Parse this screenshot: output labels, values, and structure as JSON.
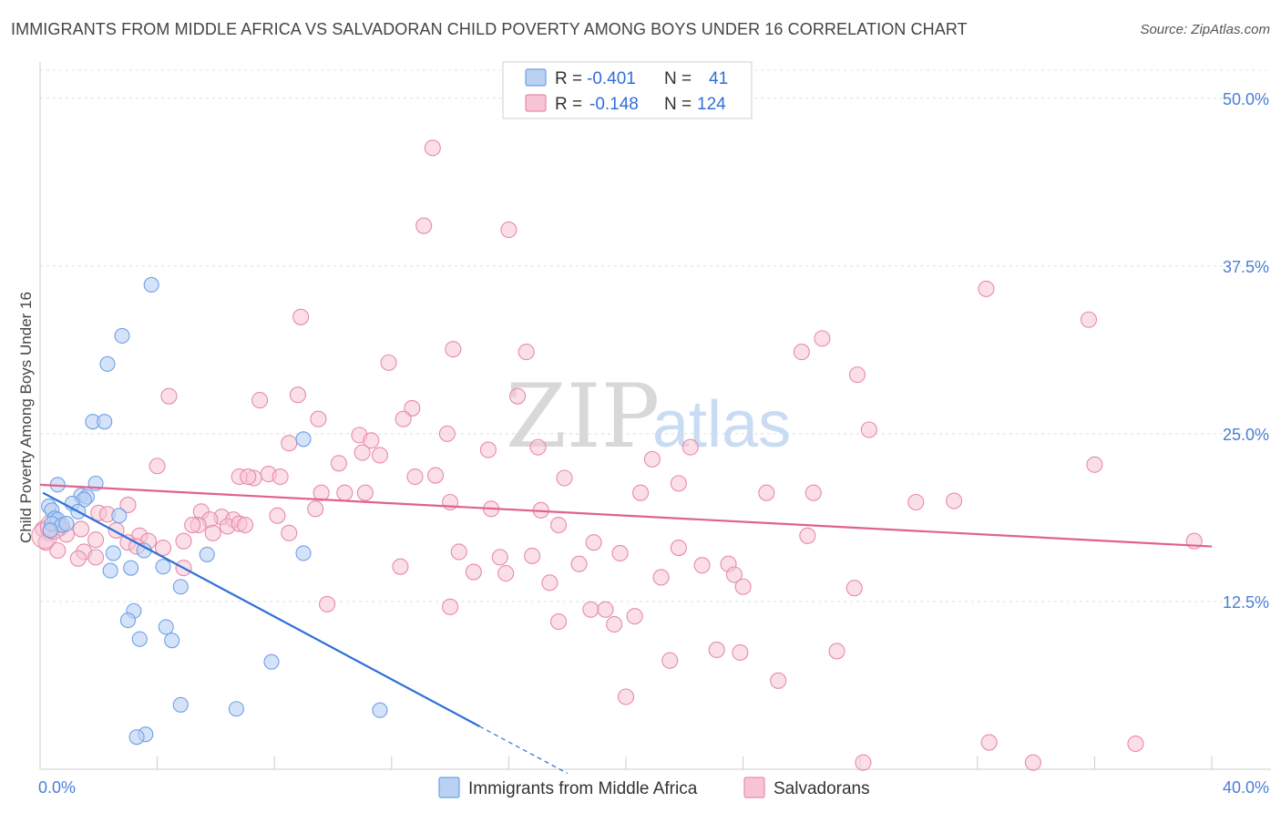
{
  "title": "IMMIGRANTS FROM MIDDLE AFRICA VS SALVADORAN CHILD POVERTY AMONG BOYS UNDER 16 CORRELATION CHART",
  "source": "Source: ZipAtlas.com",
  "watermark": {
    "zip": "ZIP",
    "atlas": "atlas"
  },
  "colors": {
    "blue": "#6fa0e8",
    "blue_fill": "#b9d1f3",
    "blue_line": "#2f6fd8",
    "pink": "#e88aaa",
    "pink_fill": "#f6c4d4",
    "pink_line": "#e0628d"
  },
  "chart_data": {
    "type": "scatter",
    "title": "IMMIGRANTS FROM MIDDLE AFRICA VS SALVADORAN CHILD POVERTY AMONG BOYS UNDER 16 CORRELATION CHART",
    "xlabel": "",
    "ylabel": "Child Poverty Among Boys Under 16",
    "xlim": [
      0,
      40
    ],
    "ylim": [
      0,
      52.5
    ],
    "x_tick_labels": [
      "0.0%",
      "40.0%"
    ],
    "y_tick_labels": [
      "12.5%",
      "25.0%",
      "37.5%",
      "50.0%"
    ],
    "y_ticks": [
      12.5,
      25.0,
      37.5,
      50.0
    ],
    "legend": [
      {
        "label": "R =",
        "r": "-0.401",
        "n_label": "N =",
        "n": "41"
      },
      {
        "label": "R =",
        "r": "-0.148",
        "n_label": "N =",
        "n": "124"
      }
    ],
    "series": [
      {
        "name": "Immigrants from Middle Africa",
        "trend": {
          "x0": 0.1,
          "y0": 20.6,
          "x1": 15.0,
          "y1": 3.2,
          "dash_to_x": 18.0
        },
        "points": [
          [
            3.8,
            36.1
          ],
          [
            2.8,
            32.3
          ],
          [
            2.3,
            30.2
          ],
          [
            1.8,
            25.9
          ],
          [
            2.2,
            25.9
          ],
          [
            8.99,
            24.6
          ],
          [
            0.6,
            21.2
          ],
          [
            1.9,
            21.3
          ],
          [
            1.4,
            20.4
          ],
          [
            1.6,
            20.3
          ],
          [
            1.5,
            20.1
          ],
          [
            1.1,
            19.8
          ],
          [
            0.3,
            19.6
          ],
          [
            0.4,
            19.3
          ],
          [
            1.3,
            19.2
          ],
          [
            2.7,
            18.9
          ],
          [
            0.5,
            18.7
          ],
          [
            0.6,
            18.6
          ],
          [
            0.4,
            18.3
          ],
          [
            0.75,
            18.2
          ],
          [
            0.9,
            18.3
          ],
          [
            0.35,
            17.8
          ],
          [
            2.5,
            16.1
          ],
          [
            3.55,
            16.3
          ],
          [
            5.7,
            16.0
          ],
          [
            8.99,
            16.1
          ],
          [
            4.2,
            15.1
          ],
          [
            3.1,
            15.0
          ],
          [
            2.4,
            14.8
          ],
          [
            4.8,
            13.6
          ],
          [
            3.2,
            11.8
          ],
          [
            3.0,
            11.1
          ],
          [
            4.3,
            10.6
          ],
          [
            3.4,
            9.7
          ],
          [
            4.5,
            9.6
          ],
          [
            7.9,
            8.0
          ],
          [
            4.8,
            4.8
          ],
          [
            6.7,
            4.5
          ],
          [
            11.6,
            4.4
          ],
          [
            3.6,
            2.6
          ],
          [
            3.3,
            2.4
          ]
        ]
      },
      {
        "name": "Salvadorans",
        "trend": {
          "x0": 0.0,
          "y0": 21.2,
          "x1": 40.0,
          "y1": 16.6
        },
        "points": [
          [
            13.4,
            46.3
          ],
          [
            13.1,
            40.5
          ],
          [
            16.0,
            40.2
          ],
          [
            32.3,
            35.8
          ],
          [
            35.8,
            33.5
          ],
          [
            8.9,
            33.7
          ],
          [
            26.7,
            32.1
          ],
          [
            14.1,
            31.3
          ],
          [
            16.6,
            31.1
          ],
          [
            26.0,
            31.1
          ],
          [
            11.9,
            30.3
          ],
          [
            27.9,
            29.4
          ],
          [
            8.8,
            27.9
          ],
          [
            4.4,
            27.8
          ],
          [
            7.5,
            27.5
          ],
          [
            16.3,
            27.8
          ],
          [
            12.7,
            26.9
          ],
          [
            9.5,
            26.1
          ],
          [
            12.4,
            26.1
          ],
          [
            28.3,
            25.3
          ],
          [
            13.9,
            25.0
          ],
          [
            10.9,
            24.9
          ],
          [
            11.3,
            24.5
          ],
          [
            8.5,
            24.3
          ],
          [
            22.2,
            24.0
          ],
          [
            15.3,
            23.8
          ],
          [
            17.0,
            24.0
          ],
          [
            11.0,
            23.6
          ],
          [
            11.6,
            23.4
          ],
          [
            20.9,
            23.1
          ],
          [
            36.0,
            22.7
          ],
          [
            4.0,
            22.6
          ],
          [
            10.2,
            22.8
          ],
          [
            7.8,
            22.0
          ],
          [
            6.8,
            21.8
          ],
          [
            7.3,
            21.7
          ],
          [
            12.8,
            21.8
          ],
          [
            13.5,
            21.9
          ],
          [
            17.9,
            21.7
          ],
          [
            21.8,
            21.3
          ],
          [
            7.1,
            21.8
          ],
          [
            8.2,
            21.8
          ],
          [
            24.8,
            20.6
          ],
          [
            20.5,
            20.6
          ],
          [
            9.6,
            20.6
          ],
          [
            10.4,
            20.6
          ],
          [
            11.1,
            20.6
          ],
          [
            26.4,
            20.6
          ],
          [
            14.0,
            19.9
          ],
          [
            29.9,
            19.9
          ],
          [
            31.2,
            20.0
          ],
          [
            15.4,
            19.4
          ],
          [
            17.1,
            19.3
          ],
          [
            9.4,
            19.4
          ],
          [
            3.0,
            19.7
          ],
          [
            2.0,
            19.1
          ],
          [
            2.3,
            19.0
          ],
          [
            5.5,
            19.2
          ],
          [
            8.1,
            18.9
          ],
          [
            6.2,
            18.8
          ],
          [
            5.8,
            18.6
          ],
          [
            6.6,
            18.6
          ],
          [
            5.4,
            18.2
          ],
          [
            5.2,
            18.2
          ],
          [
            6.4,
            18.1
          ],
          [
            6.8,
            18.3
          ],
          [
            7.0,
            18.2
          ],
          [
            17.7,
            18.2
          ],
          [
            0.7,
            18.0
          ],
          [
            1.4,
            17.9
          ],
          [
            0.3,
            17.6
          ],
          [
            0.1,
            17.9
          ],
          [
            0.9,
            17.5
          ],
          [
            2.6,
            17.8
          ],
          [
            5.9,
            17.6
          ],
          [
            8.5,
            17.6
          ],
          [
            26.2,
            17.4
          ],
          [
            39.4,
            17.0
          ],
          [
            4.9,
            17.0
          ],
          [
            3.4,
            17.4
          ],
          [
            1.9,
            17.1
          ],
          [
            3.7,
            17.0
          ],
          [
            3.0,
            16.9
          ],
          [
            0.2,
            16.9
          ],
          [
            3.3,
            16.6
          ],
          [
            4.2,
            16.5
          ],
          [
            0.6,
            16.3
          ],
          [
            1.5,
            16.2
          ],
          [
            21.8,
            16.5
          ],
          [
            18.9,
            16.9
          ],
          [
            19.8,
            16.1
          ],
          [
            14.3,
            16.2
          ],
          [
            16.8,
            15.9
          ],
          [
            15.7,
            15.8
          ],
          [
            1.9,
            15.8
          ],
          [
            1.3,
            15.7
          ],
          [
            4.9,
            15.0
          ],
          [
            12.3,
            15.1
          ],
          [
            18.4,
            15.3
          ],
          [
            22.6,
            15.2
          ],
          [
            23.5,
            15.3
          ],
          [
            14.8,
            14.7
          ],
          [
            15.9,
            14.6
          ],
          [
            23.7,
            14.5
          ],
          [
            21.2,
            14.3
          ],
          [
            17.4,
            13.9
          ],
          [
            24.0,
            13.6
          ],
          [
            27.8,
            13.5
          ],
          [
            9.8,
            12.3
          ],
          [
            14.0,
            12.1
          ],
          [
            18.8,
            11.9
          ],
          [
            19.3,
            11.9
          ],
          [
            20.3,
            11.4
          ],
          [
            17.7,
            11.0
          ],
          [
            19.6,
            10.8
          ],
          [
            23.1,
            8.9
          ],
          [
            23.9,
            8.7
          ],
          [
            21.5,
            8.1
          ],
          [
            27.2,
            8.8
          ],
          [
            25.2,
            6.6
          ],
          [
            20.0,
            5.4
          ],
          [
            32.4,
            2.0
          ],
          [
            37.4,
            1.9
          ],
          [
            28.1,
            0.5
          ],
          [
            33.9,
            0.5
          ]
        ]
      }
    ]
  },
  "bottom_legend": [
    "Immigrants from Middle Africa",
    "Salvadorans"
  ]
}
